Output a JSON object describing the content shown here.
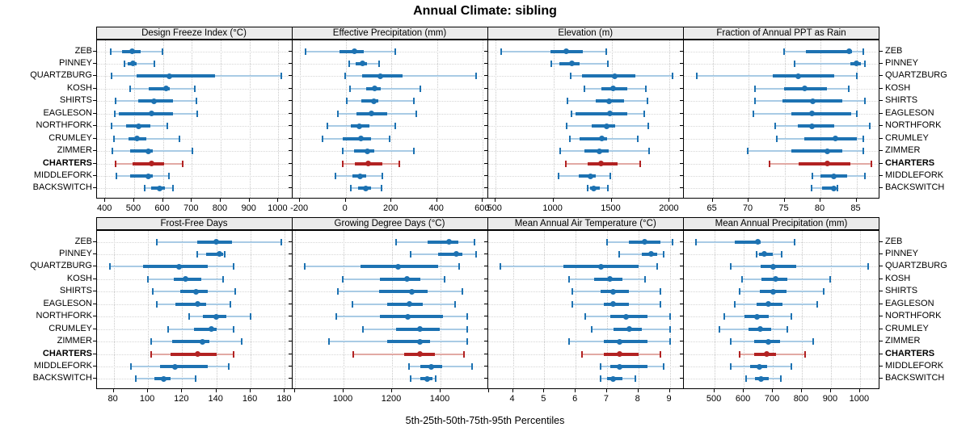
{
  "title": "Annual Climate: sibling",
  "caption": "5th-25th-50th-75th-95th Percentiles",
  "percentile_levels": [
    5,
    25,
    50,
    75,
    95
  ],
  "stations": [
    "ZEB",
    "PINNEY",
    "QUARTZBURG",
    "KOSH",
    "SHIRTS",
    "EAGLESON",
    "NORTHFORK",
    "CRUMLEY",
    "ZIMMER",
    "CHARTERS",
    "MIDDLEFORK",
    "BACKSWITCH"
  ],
  "highlight_station": "CHARTERS",
  "colors": {
    "series": "#1d72b2",
    "series_light": "#a9cbe5",
    "highlight": "#b22222",
    "highlight_light": "#e2a9a4",
    "strip_bg": "#ebebeb",
    "grid": "#c9c9c9",
    "row_guide": "#d6d6d6",
    "border": "#000000"
  },
  "chart_data": [
    {
      "type": "dotplot-interval",
      "title": "Design Freeze Index (°C)",
      "xlim": [
        370,
        1048
      ],
      "ticks": [
        400,
        500,
        600,
        700,
        800,
        900,
        1000
      ],
      "unlabeled_ticks": [],
      "values": [
        [
          420,
          457,
          492,
          524,
          599
        ],
        [
          466,
          478,
          496,
          510,
          571
        ],
        [
          423,
          510,
          622,
          781,
          1010
        ],
        [
          485,
          550,
          610,
          624,
          711
        ],
        [
          436,
          515,
          568,
          636,
          716
        ],
        [
          434,
          448,
          560,
          636,
          718
        ],
        [
          421,
          471,
          515,
          557,
          615
        ],
        [
          431,
          482,
          510,
          543,
          657
        ],
        [
          426,
          487,
          550,
          566,
          702
        ],
        [
          436,
          496,
          560,
          604,
          669
        ],
        [
          438,
          485,
          550,
          565,
          622
        ],
        [
          538,
          560,
          588,
          606,
          634
        ]
      ]
    },
    {
      "type": "dotplot-interval",
      "title": "Effective Precipitation (mm)",
      "xlim": [
        -234,
        622
      ],
      "ticks": [
        -200,
        0,
        200,
        400,
        600
      ],
      "unlabeled_ticks": [],
      "values": [
        [
          -177,
          -27,
          38,
          79,
          216
        ],
        [
          15,
          45,
          73,
          94,
          147
        ],
        [
          -2,
          71,
          151,
          248,
          572
        ],
        [
          18,
          88,
          126,
          153,
          327
        ],
        [
          3,
          68,
          124,
          144,
          298
        ],
        [
          -35,
          47,
          114,
          183,
          309
        ],
        [
          -79,
          21,
          59,
          103,
          216
        ],
        [
          -100,
          -12,
          67,
          112,
          191
        ],
        [
          -12,
          35,
          94,
          124,
          298
        ],
        [
          -12,
          41,
          100,
          159,
          236
        ],
        [
          -44,
          29,
          62,
          88,
          162
        ],
        [
          24,
          55,
          88,
          112,
          156
        ]
      ]
    },
    {
      "type": "dotplot-interval",
      "title": "Elevation (m)",
      "xlim": [
        436,
        2122
      ],
      "ticks": [
        500,
        1000,
        1500,
        2000
      ],
      "unlabeled_ticks": [],
      "values": [
        [
          551,
          973,
          1112,
          1255,
          1452
        ],
        [
          984,
          1049,
          1158,
          1228,
          1466
        ],
        [
          1147,
          1246,
          1529,
          1703,
          2027
        ],
        [
          1267,
          1413,
          1517,
          1633,
          1796
        ],
        [
          1123,
          1367,
          1478,
          1610,
          1807
        ],
        [
          1158,
          1193,
          1489,
          1633,
          1779
        ],
        [
          1112,
          1332,
          1459,
          1529,
          1819
        ],
        [
          1142,
          1228,
          1418,
          1459,
          1726
        ],
        [
          1061,
          1267,
          1397,
          1476,
          1823
        ],
        [
          1105,
          1297,
          1406,
          1552,
          1745
        ],
        [
          1047,
          1216,
          1316,
          1362,
          1487
        ],
        [
          1292,
          1316,
          1350,
          1397,
          1471
        ]
      ]
    },
    {
      "type": "dotplot-interval",
      "title": "Fraction of Annual PPT as Rain",
      "xlim": [
        61,
        88.2
      ],
      "ticks": [
        65,
        70,
        75,
        80,
        85
      ],
      "unlabeled_ticks": [],
      "values": [
        [
          74.9,
          78.0,
          84.0,
          84.4,
          85.9
        ],
        [
          76.4,
          84.1,
          85.0,
          85.6,
          86.2
        ],
        [
          62.8,
          73.4,
          76.9,
          81.9,
          85.0
        ],
        [
          70.9,
          74.9,
          77.8,
          80.9,
          83.9
        ],
        [
          70.9,
          74.7,
          78.9,
          83.0,
          86.2
        ],
        [
          70.7,
          75.9,
          78.8,
          84.3,
          85.0
        ],
        [
          73.7,
          76.9,
          78.8,
          81.9,
          86.8
        ],
        [
          73.9,
          77.7,
          82.1,
          85.0,
          86.0
        ],
        [
          69.9,
          76.0,
          80.9,
          83.0,
          86.0
        ],
        [
          72.9,
          77.0,
          80.9,
          84.1,
          87.1
        ],
        [
          78.9,
          80.0,
          81.9,
          83.7,
          86.2
        ],
        [
          78.8,
          80.2,
          81.8,
          82.0,
          82.3
        ]
      ]
    },
    {
      "type": "dotplot-interval",
      "title": "Frost-Free Days",
      "xlim": [
        70,
        184.3
      ],
      "ticks": [
        80,
        100,
        120,
        140,
        160,
        180
      ],
      "unlabeled_ticks": [],
      "values": [
        [
          105,
          129,
          140,
          149,
          178
        ],
        [
          129,
          134,
          142,
          144,
          145
        ],
        [
          78,
          97,
          118,
          135,
          150
        ],
        [
          100,
          115,
          122,
          131,
          144
        ],
        [
          103,
          119,
          128,
          135,
          151
        ],
        [
          105,
          116,
          129,
          134,
          148
        ],
        [
          124,
          132,
          140,
          146,
          160
        ],
        [
          112,
          127,
          137,
          140,
          150
        ],
        [
          102,
          114,
          132,
          136,
          155
        ],
        [
          102,
          113,
          129,
          140,
          150
        ],
        [
          90,
          107,
          116,
          135,
          147
        ],
        [
          93,
          104,
          109,
          113,
          128
        ]
      ]
    },
    {
      "type": "dotplot-interval",
      "title": "Growing Degree Days (°C)",
      "xlim": [
        788,
        1595
      ],
      "ticks": [
        1000,
        1200,
        1400
      ],
      "unlabeled_ticks": [
        800,
        1600
      ],
      "values": [
        [
          1215,
          1345,
          1435,
          1475,
          1540
        ],
        [
          1275,
          1390,
          1465,
          1490,
          1545
        ],
        [
          840,
          1070,
          1225,
          1390,
          1475
        ],
        [
          995,
          1150,
          1260,
          1315,
          1415
        ],
        [
          975,
          1145,
          1280,
          1345,
          1490
        ],
        [
          1035,
          1180,
          1270,
          1325,
          1460
        ],
        [
          970,
          1150,
          1265,
          1410,
          1510
        ],
        [
          1080,
          1215,
          1315,
          1395,
          1510
        ],
        [
          940,
          1180,
          1315,
          1355,
          1510
        ],
        [
          1040,
          1250,
          1315,
          1375,
          1495
        ],
        [
          1270,
          1315,
          1360,
          1405,
          1530
        ],
        [
          1275,
          1315,
          1345,
          1365,
          1380
        ]
      ]
    },
    {
      "type": "dotplot-interval",
      "title": "Mean Annual Air Temperature (°C)",
      "xlim": [
        3.2,
        9.45
      ],
      "ticks": [
        4,
        5,
        6,
        7,
        8,
        9
      ],
      "unlabeled_ticks": [],
      "values": [
        [
          7.0,
          7.7,
          8.2,
          8.7,
          9.1
        ],
        [
          7.4,
          8.1,
          8.4,
          8.6,
          8.8
        ],
        [
          3.6,
          5.6,
          6.8,
          8.0,
          8.6
        ],
        [
          5.8,
          6.6,
          7.1,
          7.5,
          8.2
        ],
        [
          5.9,
          6.8,
          7.2,
          7.7,
          8.7
        ],
        [
          5.9,
          6.9,
          7.2,
          7.7,
          8.7
        ],
        [
          6.3,
          7.1,
          7.6,
          8.3,
          9.0
        ],
        [
          6.5,
          7.2,
          7.7,
          8.1,
          9.0
        ],
        [
          5.8,
          6.9,
          7.4,
          8.3,
          9.0
        ],
        [
          6.2,
          6.9,
          7.4,
          8.0,
          8.7
        ],
        [
          6.8,
          7.1,
          7.4,
          8.3,
          8.8
        ],
        [
          6.8,
          7.0,
          7.2,
          7.5,
          7.9
        ]
      ]
    },
    {
      "type": "dotplot-interval",
      "title": "Mean Annual Precipitation (mm)",
      "xlim": [
        394,
        1067
      ],
      "ticks": [
        500,
        600,
        700,
        800,
        900,
        1000
      ],
      "unlabeled_ticks": [],
      "values": [
        [
          435,
          570,
          648,
          658,
          774
        ],
        [
          643,
          654,
          670,
          700,
          731
        ],
        [
          556,
          658,
          700,
          781,
          1029
        ],
        [
          594,
          660,
          709,
          751,
          897
        ],
        [
          586,
          656,
          700,
          746,
          876
        ],
        [
          569,
          644,
          686,
          734,
          853
        ],
        [
          532,
          603,
          646,
          686,
          763
        ],
        [
          515,
          617,
          658,
          695,
          749
        ],
        [
          555,
          637,
          686,
          725,
          839
        ],
        [
          586,
          637,
          680,
          711,
          811
        ],
        [
          555,
          623,
          654,
          681,
          763
        ],
        [
          607,
          638,
          660,
          686,
          728
        ]
      ]
    }
  ]
}
